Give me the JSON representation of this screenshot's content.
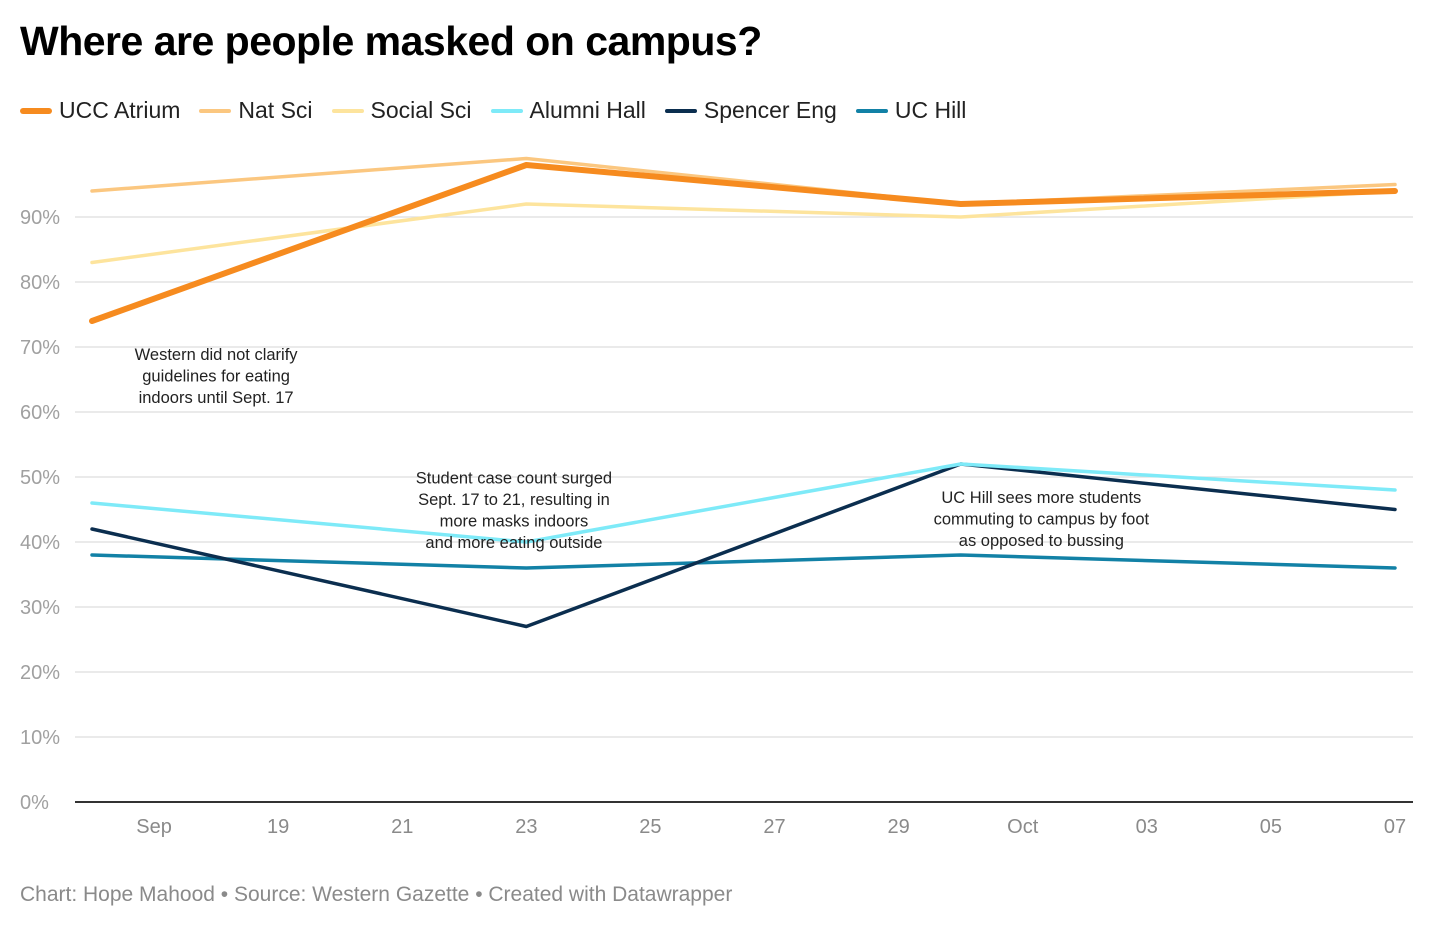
{
  "chart_data": {
    "type": "line",
    "title": "Where are people masked on campus?",
    "x_ticks": [
      "Sep",
      "19",
      "21",
      "23",
      "25",
      "27",
      "29",
      "Oct",
      "03",
      "05",
      "07"
    ],
    "x": [
      "2021-09-16",
      "2021-09-23",
      "2021-09-30",
      "2021-10-07"
    ],
    "y_ticks": [
      "0%",
      "10%",
      "20%",
      "30%",
      "40%",
      "50%",
      "60%",
      "70%",
      "80%",
      "90%"
    ],
    "ylim": [
      0,
      100
    ],
    "series": [
      {
        "name": "UCC Atrium",
        "color": "#f68b1f",
        "width": 6,
        "values": [
          74,
          98,
          92,
          94
        ]
      },
      {
        "name": "Nat Sci",
        "color": "#fbc780",
        "width": 3.5,
        "values": [
          94,
          99,
          92,
          95
        ]
      },
      {
        "name": "Social Sci",
        "color": "#fde49d",
        "width": 3.5,
        "values": [
          83,
          92,
          90,
          94
        ]
      },
      {
        "name": "Alumni Hall",
        "color": "#7eeaf8",
        "width": 3.5,
        "values": [
          46,
          40,
          52,
          48
        ]
      },
      {
        "name": "Spencer Eng",
        "color": "#0b2e4f",
        "width": 3.5,
        "values": [
          42,
          27,
          52,
          45
        ]
      },
      {
        "name": "UC Hill",
        "color": "#1281a6",
        "width": 3.5,
        "values": [
          38,
          36,
          38,
          36
        ]
      }
    ],
    "annotations": [
      {
        "x": "2021-09-18",
        "y": 68,
        "lines": [
          "Western did not clarify",
          "guidelines for eating",
          "indoors until Sept. 17"
        ]
      },
      {
        "x": "2021-09-22.8",
        "y": 49,
        "lines": [
          "Student case count surged",
          "Sept. 17 to 21, resulting in",
          "more masks indoors",
          "and more eating outside"
        ]
      },
      {
        "x": "2021-10-01.3",
        "y": 46,
        "lines": [
          "UC Hill sees more students",
          "commuting to campus by foot",
          "as opposed to bussing"
        ]
      }
    ],
    "footer": "Chart: Hope Mahood • Source: Western Gazette • Created with Datawrapper"
  }
}
